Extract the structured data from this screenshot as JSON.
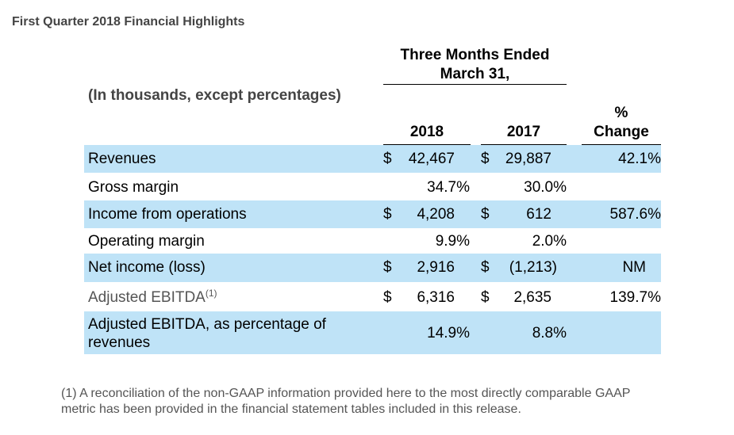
{
  "title": "First Quarter 2018 Financial Highlights",
  "subtitle": "(In thousands, except percentages)",
  "period_header": [
    "Three Months Ended",
    "March 31,"
  ],
  "columns": {
    "year1": "2018",
    "year2": "2017",
    "change": [
      "%",
      "Change"
    ]
  },
  "rows": [
    {
      "label": "Revenues",
      "d1": "$",
      "v1": "42,467",
      "d2": "$",
      "v2": "29,887",
      "change": "42.1%"
    },
    {
      "label": "Gross margin",
      "d1": "",
      "v1": "34.7%",
      "d2": "",
      "v2": "30.0%",
      "change": ""
    },
    {
      "label": "Income from operations",
      "d1": "$",
      "v1": "4,208",
      "d2": "$",
      "v2": "612",
      "change": "587.6%"
    },
    {
      "label": "Operating margin",
      "d1": "",
      "v1": "9.9%",
      "d2": "",
      "v2": "2.0%",
      "change": ""
    },
    {
      "label": "Net income (loss)",
      "d1": "$",
      "v1": "2,916",
      "d2": "$",
      "v2": "(1,213)",
      "change": "NM"
    },
    {
      "label": "Adjusted EBITDA",
      "label_sup": "(1)",
      "d1": "$",
      "v1": "6,316",
      "d2": "$",
      "v2": "2,635",
      "change": "139.7%"
    },
    {
      "label_lines": [
        "Adjusted EBITDA, as percentage of",
        "revenues"
      ],
      "v1": "14.9%",
      "v2": "8.8%",
      "change": ""
    }
  ],
  "footnote": [
    "(1) A reconciliation of the non-GAAP information provided here to the most directly comparable GAAP",
    "metric has been provided in the financial statement tables included in this release."
  ]
}
